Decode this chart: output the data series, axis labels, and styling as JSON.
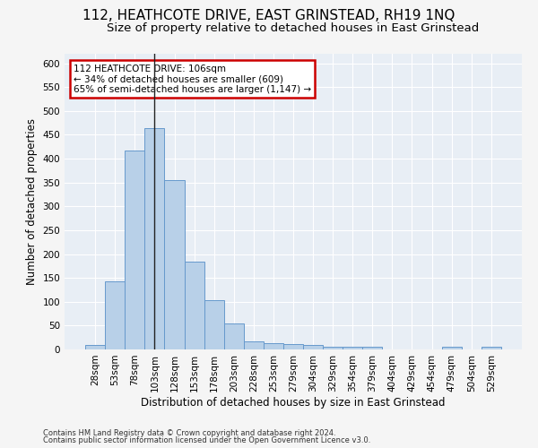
{
  "title": "112, HEATHCOTE DRIVE, EAST GRINSTEAD, RH19 1NQ",
  "subtitle": "Size of property relative to detached houses in East Grinstead",
  "xlabel": "Distribution of detached houses by size in East Grinstead",
  "ylabel": "Number of detached properties",
  "footer1": "Contains HM Land Registry data © Crown copyright and database right 2024.",
  "footer2": "Contains public sector information licensed under the Open Government Licence v3.0.",
  "categories": [
    "28sqm",
    "53sqm",
    "78sqm",
    "103sqm",
    "128sqm",
    "153sqm",
    "178sqm",
    "203sqm",
    "228sqm",
    "253sqm",
    "279sqm",
    "304sqm",
    "329sqm",
    "354sqm",
    "379sqm",
    "404sqm",
    "429sqm",
    "454sqm",
    "479sqm",
    "504sqm",
    "529sqm"
  ],
  "values": [
    10,
    143,
    417,
    465,
    355,
    185,
    103,
    54,
    16,
    14,
    11,
    10,
    6,
    5,
    5,
    0,
    0,
    0,
    5,
    0,
    5
  ],
  "bar_color": "#b8d0e8",
  "bar_edge_color": "#6699cc",
  "property_line_x": 3,
  "annotation_line1": "112 HEATHCOTE DRIVE: 106sqm",
  "annotation_line2": "← 34% of detached houses are smaller (609)",
  "annotation_line3": "65% of semi-detached houses are larger (1,147) →",
  "annotation_box_color": "#ffffff",
  "annotation_box_edge": "#cc0000",
  "ylim": [
    0,
    620
  ],
  "yticks": [
    0,
    50,
    100,
    150,
    200,
    250,
    300,
    350,
    400,
    450,
    500,
    550,
    600
  ],
  "bg_color": "#e8eef5",
  "grid_color": "#ffffff",
  "fig_bg_color": "#f5f5f5",
  "title_fontsize": 11,
  "subtitle_fontsize": 9.5,
  "axis_label_fontsize": 8.5,
  "tick_fontsize": 7.5,
  "footer_fontsize": 6.0
}
